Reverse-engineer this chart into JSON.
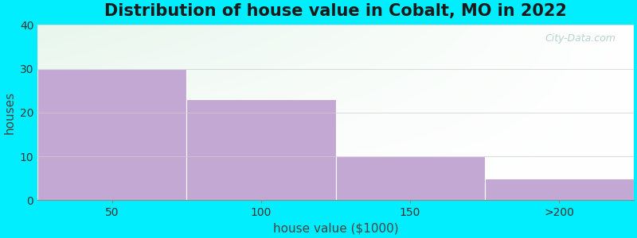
{
  "title": "Distribution of house value in Cobalt, MO in 2022",
  "xlabel": "house value ($1000)",
  "ylabel": "houses",
  "categories": [
    "50",
    "100",
    "150",
    ">200"
  ],
  "values": [
    30,
    23,
    10,
    5
  ],
  "bar_color": "#c4a8d4",
  "ylim": [
    0,
    40
  ],
  "yticks": [
    0,
    10,
    20,
    30,
    40
  ],
  "background_outer": "#00eeff",
  "background_plot_top_left": "#d8f0e0",
  "background_plot_bottom_right": "#ffffff",
  "title_fontsize": 15,
  "axis_label_fontsize": 11,
  "tick_fontsize": 10,
  "watermark_text": "City-Data.com",
  "figsize": [
    8.0,
    3.0
  ],
  "dpi": 100
}
